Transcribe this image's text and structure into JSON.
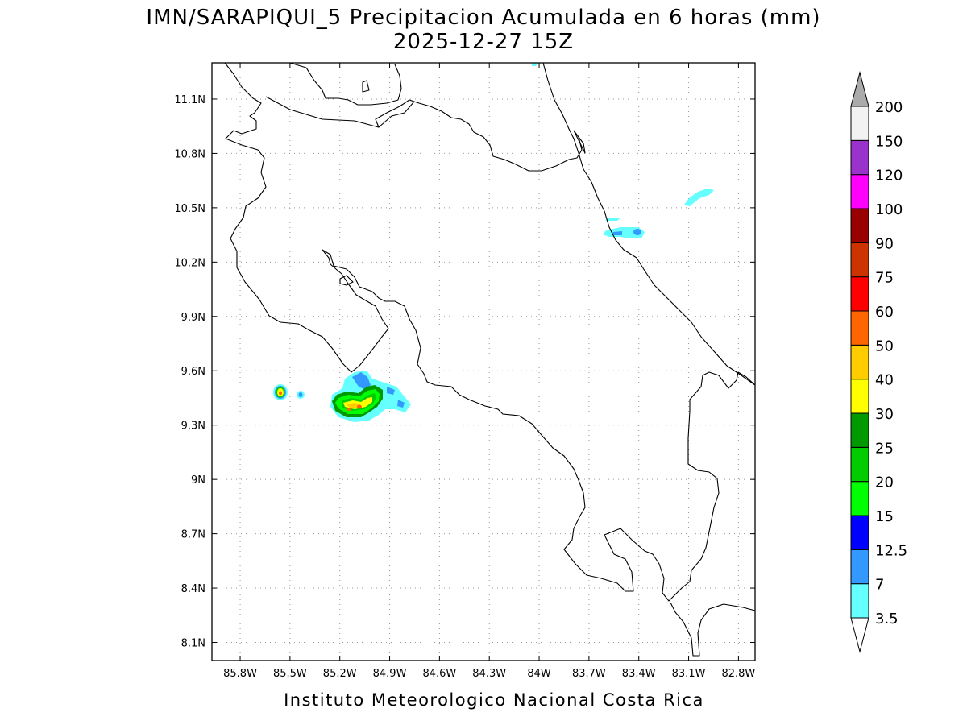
{
  "title_line1": "IMN/SARAPIQUI_5 Precipitacion Acumulada en 6 horas (mm)",
  "title_line2": "2025-12-27 15Z",
  "footer": "Instituto Meteorologico Nacional Costa Rica",
  "map": {
    "lon_range": [
      -85.97,
      -82.7
    ],
    "lat_range": [
      8.0,
      11.3
    ],
    "lon_ticks": [
      "85.8W",
      "85.5W",
      "85.2W",
      "84.9W",
      "84.6W",
      "84.3W",
      "84W",
      "83.7W",
      "83.4W",
      "83.1W",
      "82.8W"
    ],
    "lon_values": [
      -85.8,
      -85.5,
      -85.2,
      -84.9,
      -84.6,
      -84.3,
      -84.0,
      -83.7,
      -83.4,
      -83.1,
      -82.8
    ],
    "lat_ticks": [
      "8.1N",
      "8.4N",
      "8.7N",
      "9N",
      "9.3N",
      "9.6N",
      "9.9N",
      "10.2N",
      "10.5N",
      "10.8N",
      "11.1N"
    ],
    "lat_values": [
      8.1,
      8.4,
      8.7,
      9.0,
      9.3,
      9.6,
      9.9,
      10.2,
      10.5,
      10.8,
      11.1
    ],
    "grid": true
  },
  "colorbar": {
    "levels": [
      "3.5",
      "7",
      "12.5",
      "15",
      "20",
      "25",
      "30",
      "40",
      "50",
      "60",
      "75",
      "90",
      "100",
      "120",
      "150",
      "200"
    ],
    "colors": [
      "#66ffff",
      "#3399ff",
      "#0000ff",
      "#00ff00",
      "#00cc00",
      "#009900",
      "#ffff00",
      "#ffcc00",
      "#ff6600",
      "#ff0000",
      "#cc3300",
      "#990000",
      "#ff00ff",
      "#9933cc",
      "#f2f2f2",
      "#aaaaaa"
    ],
    "under_color": "#ffffff",
    "over_color": "#aaaaaa"
  }
}
